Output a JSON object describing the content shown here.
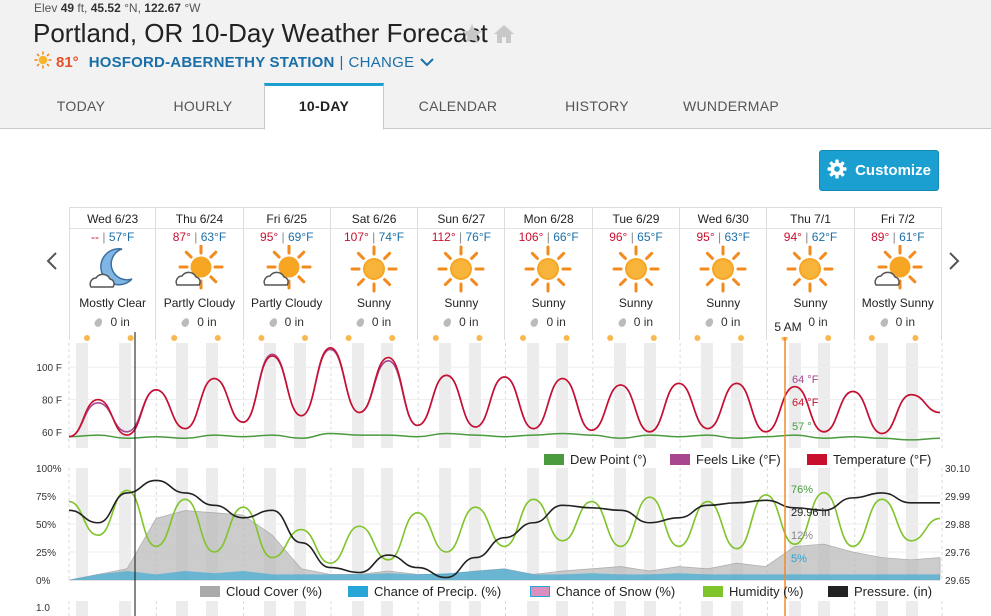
{
  "header": {
    "elev_label": "Elev",
    "elev_value": "49",
    "elev_unit": "ft,",
    "lat": "45.52",
    "lat_unit": "°N,",
    "lon": "122.67",
    "lon_unit": "°W",
    "title": "Portland, OR 10-Day Weather Forecast",
    "current_temp": "81°",
    "station": "HOSFORD-ABERNETHY STATION",
    "separator": "|",
    "change": "CHANGE"
  },
  "tabs": [
    {
      "label": "TODAY"
    },
    {
      "label": "HOURLY"
    },
    {
      "label": "10-DAY"
    },
    {
      "label": "CALENDAR"
    },
    {
      "label": "HISTORY"
    },
    {
      "label": "WUNDERMAP"
    }
  ],
  "customize_label": "Customize",
  "days": [
    {
      "name": "Wed 6/23",
      "hi": "--",
      "lo": "57°F",
      "cond": "Mostly Clear",
      "precip": "0 in",
      "icon": "moon-cloud-icon"
    },
    {
      "name": "Thu 6/24",
      "hi": "87°",
      "lo": "63°F",
      "cond": "Partly Cloudy",
      "precip": "0 in",
      "icon": "sun-cloud-icon"
    },
    {
      "name": "Fri 6/25",
      "hi": "95°",
      "lo": "69°F",
      "cond": "Partly Cloudy",
      "precip": "0 in",
      "icon": "sun-cloud-icon"
    },
    {
      "name": "Sat 6/26",
      "hi": "107°",
      "lo": "74°F",
      "cond": "Sunny",
      "precip": "0 in",
      "icon": "sun-icon"
    },
    {
      "name": "Sun 6/27",
      "hi": "112°",
      "lo": "76°F",
      "cond": "Sunny",
      "precip": "0 in",
      "icon": "sun-icon"
    },
    {
      "name": "Mon 6/28",
      "hi": "106°",
      "lo": "66°F",
      "cond": "Sunny",
      "precip": "0 in",
      "icon": "sun-icon"
    },
    {
      "name": "Tue 6/29",
      "hi": "96°",
      "lo": "65°F",
      "cond": "Sunny",
      "precip": "0 in",
      "icon": "sun-icon"
    },
    {
      "name": "Wed 6/30",
      "hi": "95°",
      "lo": "63°F",
      "cond": "Sunny",
      "precip": "0 in",
      "icon": "sun-icon"
    },
    {
      "name": "Thu 7/1",
      "hi": "94°",
      "lo": "62°F",
      "cond": "Sunny",
      "precip": "0 in",
      "icon": "sun-icon"
    },
    {
      "name": "Fri 7/2",
      "hi": "89°",
      "lo": "61°F",
      "cond": "Mostly Sunny",
      "precip": "0 in",
      "icon": "sun-cloud-icon"
    }
  ],
  "hover_time": "5 AM",
  "colors": {
    "accent": "#1a9fd0",
    "temperature": "#c8102e",
    "feels_like": "#a8478f",
    "dew_point": "#4a9a3e",
    "cloud_cover": "#aaaaaa",
    "precip_chance": "#27a5d6",
    "snow_chance": "#d98fbf",
    "humidity": "#7fc42a",
    "pressure": "#222222",
    "hover_line": "#f08a2c"
  },
  "chart_data": [
    {
      "type": "line",
      "title": "",
      "yticks": [
        "100 F",
        "80 F",
        "60 F"
      ],
      "ylim": [
        50,
        115
      ],
      "readouts": {
        "feels_like": "64 °F",
        "temperature": "64 °F",
        "dew_point": "57 °"
      },
      "series": [
        {
          "name": "Dew Point (°)",
          "key": "dew",
          "values": [
            57,
            58,
            56,
            57,
            56,
            58,
            57,
            58,
            56,
            59,
            58,
            58,
            57,
            59,
            58,
            57,
            58,
            59,
            58,
            56,
            58,
            57,
            58,
            56,
            57,
            58,
            56,
            57,
            56,
            55,
            56
          ]
        },
        {
          "name": "Feels Like (°F)",
          "key": "feels",
          "values": [
            57,
            78,
            60,
            86,
            62,
            93,
            66,
            108,
            70,
            111,
            72,
            104,
            64,
            95,
            63,
            94,
            62,
            93,
            61,
            89,
            60,
            90,
            62,
            90,
            60,
            88,
            60,
            85,
            59,
            83,
            72
          ]
        },
        {
          "name": "Temperature (°F)",
          "key": "temp",
          "values": [
            57,
            80,
            58,
            86,
            62,
            93,
            66,
            107,
            70,
            112,
            72,
            106,
            64,
            95,
            63,
            94,
            62,
            93,
            61,
            89,
            60,
            90,
            62,
            90,
            60,
            88,
            60,
            85,
            59,
            83,
            72
          ]
        }
      ]
    },
    {
      "type": "area",
      "title": "",
      "yticks_left": [
        "100%",
        "75%",
        "50%",
        "25%",
        "0%"
      ],
      "yticks_right": [
        "30.10",
        "29.99",
        "29.88",
        "29.76",
        "29.65"
      ],
      "readouts": {
        "humidity": "76%",
        "pressure": "29.96 in",
        "cloud_cover": "12%",
        "precip_chance": "5%"
      },
      "series": [
        {
          "name": "Cloud Cover (%)",
          "key": "cloud",
          "values": [
            0,
            5,
            10,
            55,
            62,
            60,
            58,
            40,
            10,
            5,
            5,
            8,
            5,
            5,
            8,
            10,
            5,
            8,
            10,
            12,
            8,
            12,
            10,
            15,
            12,
            30,
            32,
            25,
            20,
            18,
            20
          ]
        },
        {
          "name": "Chance of Precip. (%)",
          "key": "precip",
          "values": [
            0,
            5,
            8,
            5,
            8,
            6,
            8,
            5,
            5,
            5,
            5,
            6,
            5,
            6,
            8,
            10,
            5,
            5,
            6,
            5,
            5,
            6,
            5,
            5,
            5,
            5,
            5,
            5,
            5,
            5,
            5
          ]
        },
        {
          "name": "Chance of Snow (%)",
          "key": "snow",
          "values": [
            0,
            0,
            0,
            0,
            0,
            0,
            0,
            0,
            0,
            0,
            0,
            0,
            0,
            0,
            0,
            0,
            0,
            0,
            0,
            0,
            0,
            0,
            0,
            0,
            0,
            0,
            0,
            0,
            0,
            0,
            0
          ]
        },
        {
          "name": "Humidity (%)",
          "key": "humidity",
          "values": [
            70,
            40,
            80,
            30,
            72,
            25,
            65,
            20,
            45,
            15,
            48,
            18,
            60,
            25,
            65,
            30,
            72,
            35,
            70,
            30,
            74,
            30,
            70,
            28,
            76,
            32,
            78,
            30,
            72,
            35,
            55
          ]
        },
        {
          "name": "Pressure. (in)",
          "key": "pressure",
          "values": [
            29.93,
            29.88,
            30.0,
            30.05,
            30.0,
            29.95,
            29.9,
            29.93,
            29.8,
            29.7,
            29.68,
            29.75,
            29.7,
            29.66,
            29.74,
            29.82,
            29.88,
            29.95,
            29.94,
            29.93,
            29.88,
            29.9,
            29.95,
            29.96,
            29.97,
            29.94,
            29.93,
            29.98,
            30.0,
            29.96,
            29.96
          ]
        }
      ]
    }
  ],
  "bottom_chart_tick": "1.0"
}
